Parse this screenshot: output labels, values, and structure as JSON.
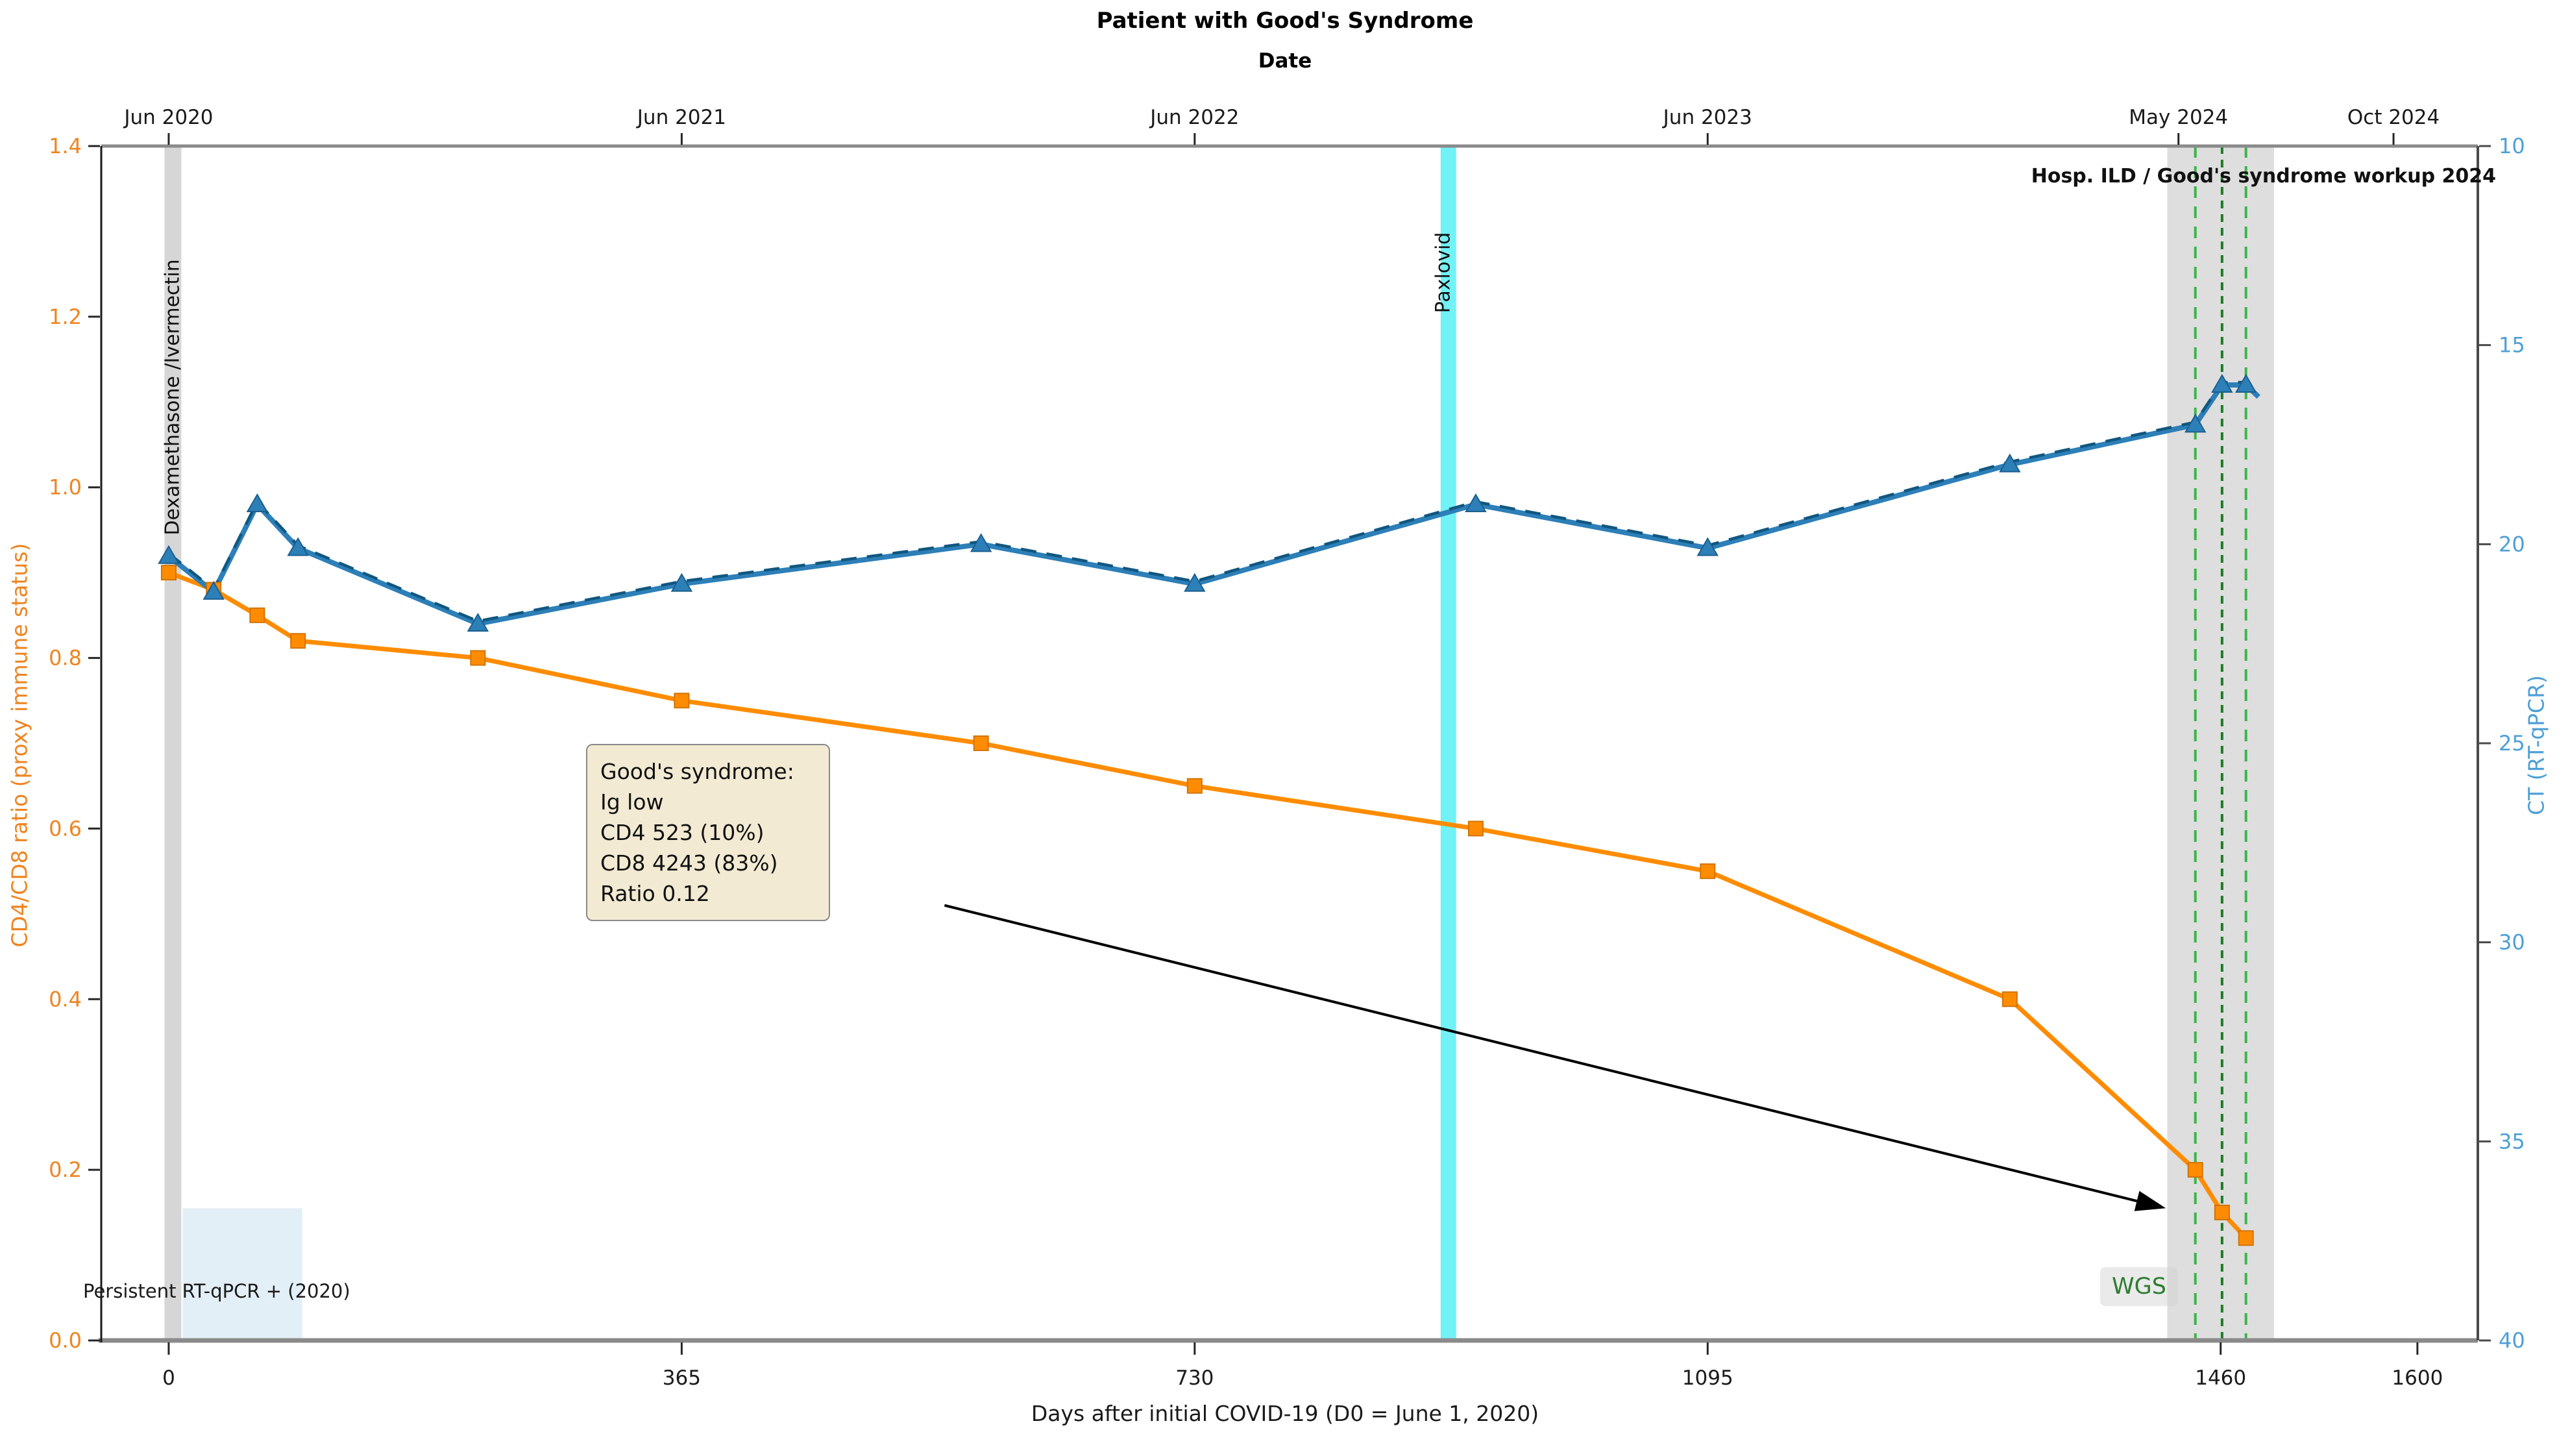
{
  "chart_data": {
    "type": "line",
    "title": "Patient with Good's Syndrome",
    "top_axis": {
      "label": "Date",
      "ticks": [
        {
          "day": 0,
          "label": "Jun 2020"
        },
        {
          "day": 365,
          "label": "Jun 2021"
        },
        {
          "day": 730,
          "label": "Jun 2022"
        },
        {
          "day": 1095,
          "label": "Jun 2023"
        },
        {
          "day": 1430,
          "label": "May 2024"
        },
        {
          "day": 1583,
          "label": "Oct 2024"
        }
      ]
    },
    "x_axis": {
      "label": "Days after initial COVID-19 (D0 = June 1, 2020)",
      "ticks": [
        0,
        365,
        730,
        1095,
        1460,
        1600
      ],
      "range": [
        -48,
        1643
      ],
      "grid": false
    },
    "y_left": {
      "label": "CD4/CD8 ratio (proxy immune status)",
      "color": "#ee8420",
      "tick_labels": [
        "0.0",
        "0.2",
        "0.4",
        "0.6",
        "0.8",
        "1.0",
        "1.2",
        "1.4"
      ],
      "ticks": [
        0.0,
        0.2,
        0.4,
        0.6,
        0.8,
        1.0,
        1.2,
        1.4
      ],
      "range": [
        0,
        1.4
      ]
    },
    "y_right": {
      "label": "CT (RT-qPCR)",
      "color": "#4d9fd6",
      "ticks": [
        10,
        15,
        20,
        25,
        30,
        35,
        40
      ],
      "range": [
        10,
        40
      ],
      "inverted": true
    },
    "series": [
      {
        "name": "CD4/CD8 ratio",
        "axis": "left",
        "color": "#ff8c00",
        "edge_color": "#d27300",
        "marker": "square",
        "x": [
          0,
          32,
          63,
          92,
          220,
          365,
          578,
          730,
          930,
          1095,
          1310,
          1442,
          1461,
          1478
        ],
        "y": [
          0.9,
          0.88,
          0.85,
          0.82,
          0.8,
          0.75,
          0.7,
          0.65,
          0.6,
          0.55,
          0.4,
          0.2,
          0.15,
          0.12
        ]
      },
      {
        "name": "CT (RT-qPCR)",
        "axis": "right",
        "color": "#2d7fb8",
        "edge_color": "#1b5f8e",
        "dash_overlay_color": "#11577f",
        "marker": "triangle-up",
        "x": [
          0,
          32,
          63,
          92,
          220,
          365,
          578,
          730,
          930,
          1095,
          1310,
          1442,
          1461,
          1478
        ],
        "y": [
          20.3,
          21.2,
          19.0,
          20.1,
          22.0,
          21.0,
          20.0,
          21.0,
          19.0,
          20.1,
          18.0,
          17.0,
          16.0,
          16.0
        ],
        "tail": {
          "x": 1487,
          "y": 16.3
        }
      }
    ],
    "bands": [
      {
        "name": "dexamethasone-ivermectin",
        "label": "Dexamethasone /Ivermectin",
        "x0": -3,
        "x1": 9,
        "color": "#cfcfcf",
        "opacity": 0.85
      },
      {
        "name": "paxlovid",
        "label": "Paxlovid",
        "x0": 905,
        "x1": 916,
        "color": "#35ecf2",
        "opacity": 0.7
      },
      {
        "name": "hosp-workup",
        "label": "Hosp. ILD / Good's syndrome workup 2024",
        "x0": 1422,
        "x1": 1498,
        "color": "#d8d8d8",
        "opacity": 0.85
      }
    ],
    "regions": [
      {
        "name": "persistent-rtqpcr-positive",
        "label": "Persistent RT-qPCR + (2020)",
        "x0": 10,
        "x1": 95,
        "y0": 0,
        "y1": 0.155,
        "color": "#dcebf4",
        "opacity": 0.8
      }
    ],
    "vlines": [
      {
        "name": "wgs-sample-1",
        "x": 1442,
        "color": "#3cb54a",
        "dash": "18 13"
      },
      {
        "name": "wgs-sample-2",
        "x": 1461,
        "color": "#1d7c27",
        "dash": "12 9"
      },
      {
        "name": "wgs-sample-3",
        "x": 1478,
        "color": "#3cb54a",
        "dash": "18 13"
      }
    ],
    "annotations": {
      "wgs": "WGS",
      "box_lines": [
        "Good's syndrome:",
        "Ig low",
        "CD4 523 (10%)",
        "CD8 4243 (83%)",
        "Ratio 0.12"
      ],
      "arrow": {
        "from_day": 552,
        "from_ratio": 0.51,
        "to_day": 1421,
        "to_ratio": 0.155
      }
    }
  }
}
